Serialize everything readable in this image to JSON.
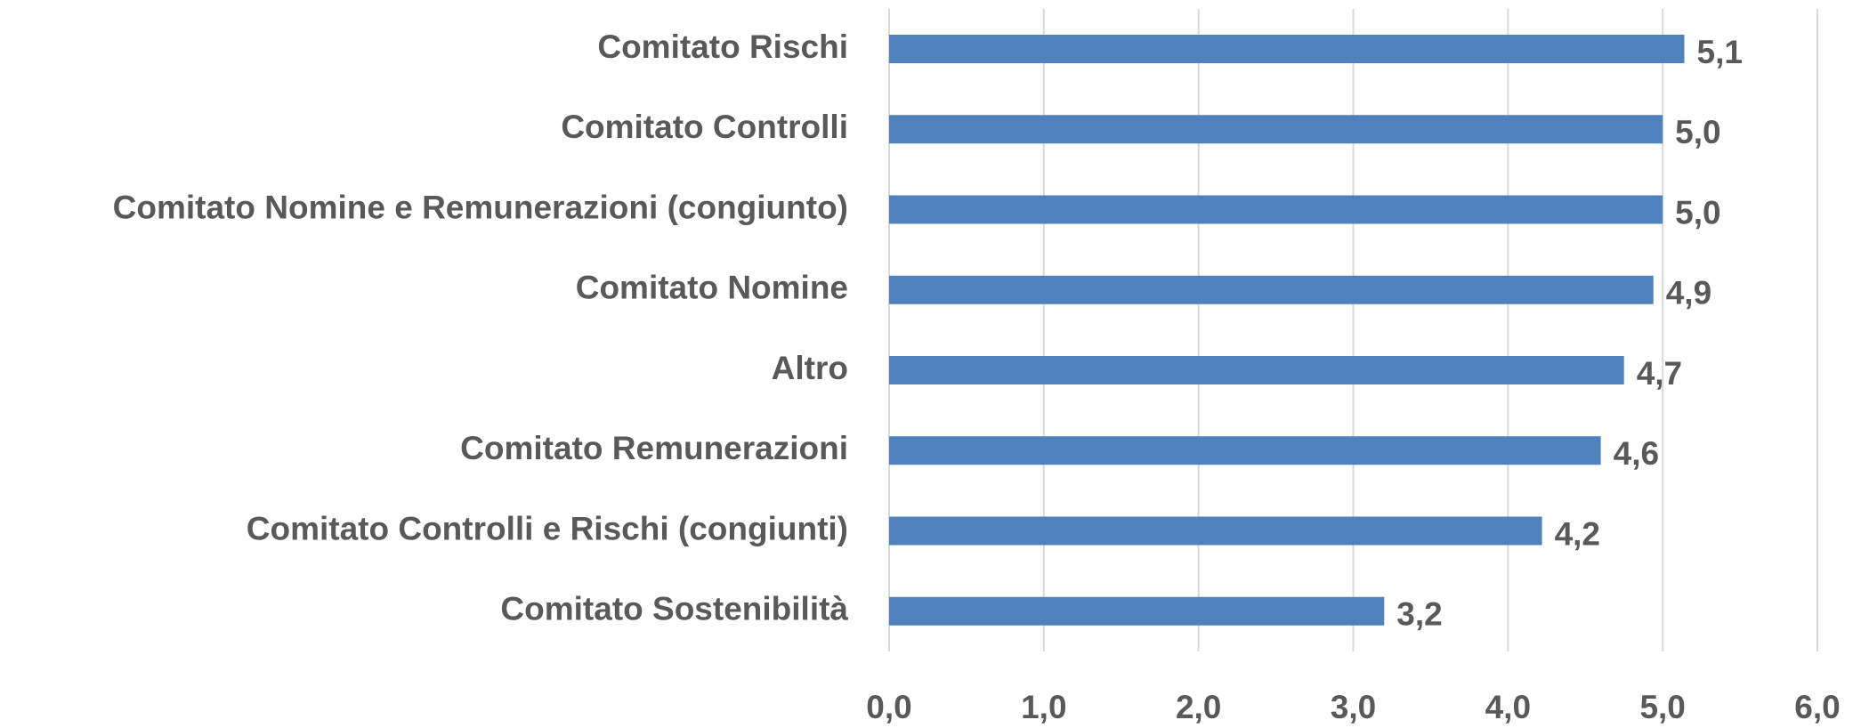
{
  "chart_data": {
    "type": "bar",
    "orientation": "horizontal",
    "categories": [
      "Comitato Rischi",
      "Comitato Controlli",
      "Comitato Nomine e Remunerazioni (congiunto)",
      "Comitato Nomine",
      "Altro",
      "Comitato Remunerazioni",
      "Comitato Controlli e Rischi (congiunti)",
      "Comitato Sostenibilità"
    ],
    "values": [
      5.14,
      5.0,
      5.0,
      4.94,
      4.75,
      4.6,
      4.22,
      3.2
    ],
    "value_labels": [
      "5,1",
      "5,0",
      "5,0",
      "4,9",
      "4,7",
      "4,6",
      "4,2",
      "3,2"
    ],
    "color": "#4f81bd",
    "xlim": [
      0,
      6
    ],
    "xticks": [
      {
        "value": 0,
        "label": "0,0"
      },
      {
        "value": 1,
        "label": "1,0"
      },
      {
        "value": 2,
        "label": "2,0"
      },
      {
        "value": 3,
        "label": "3,0"
      },
      {
        "value": 4,
        "label": "4,0"
      },
      {
        "value": 5,
        "label": "5,0"
      },
      {
        "value": 6,
        "label": "6,0"
      }
    ],
    "grid": true
  }
}
